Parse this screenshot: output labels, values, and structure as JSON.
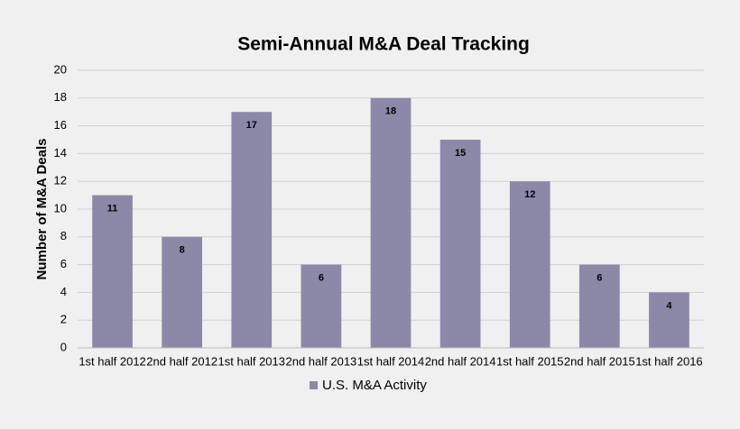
{
  "chart_data": {
    "type": "bar",
    "title": "Semi-Annual M&A Deal Tracking",
    "y_label": "Number of M&A Deals",
    "categories": [
      "1st half 2012",
      "2nd half 2012",
      "1st half 2013",
      "2nd half 2013",
      "1st half 2014",
      "2nd half 2014",
      "1st half 2015",
      "2nd half 2015",
      "1st half 2016"
    ],
    "series": [
      {
        "name": "U.S. M&A Activity",
        "color": "#8c88a8",
        "values": [
          11,
          8,
          17,
          6,
          18,
          15,
          12,
          6,
          4
        ]
      }
    ],
    "ylim": [
      0,
      20
    ],
    "yticks": [
      0,
      2,
      4,
      6,
      8,
      10,
      12,
      14,
      16,
      18,
      20
    ],
    "grid": true,
    "legend": "bottom"
  }
}
